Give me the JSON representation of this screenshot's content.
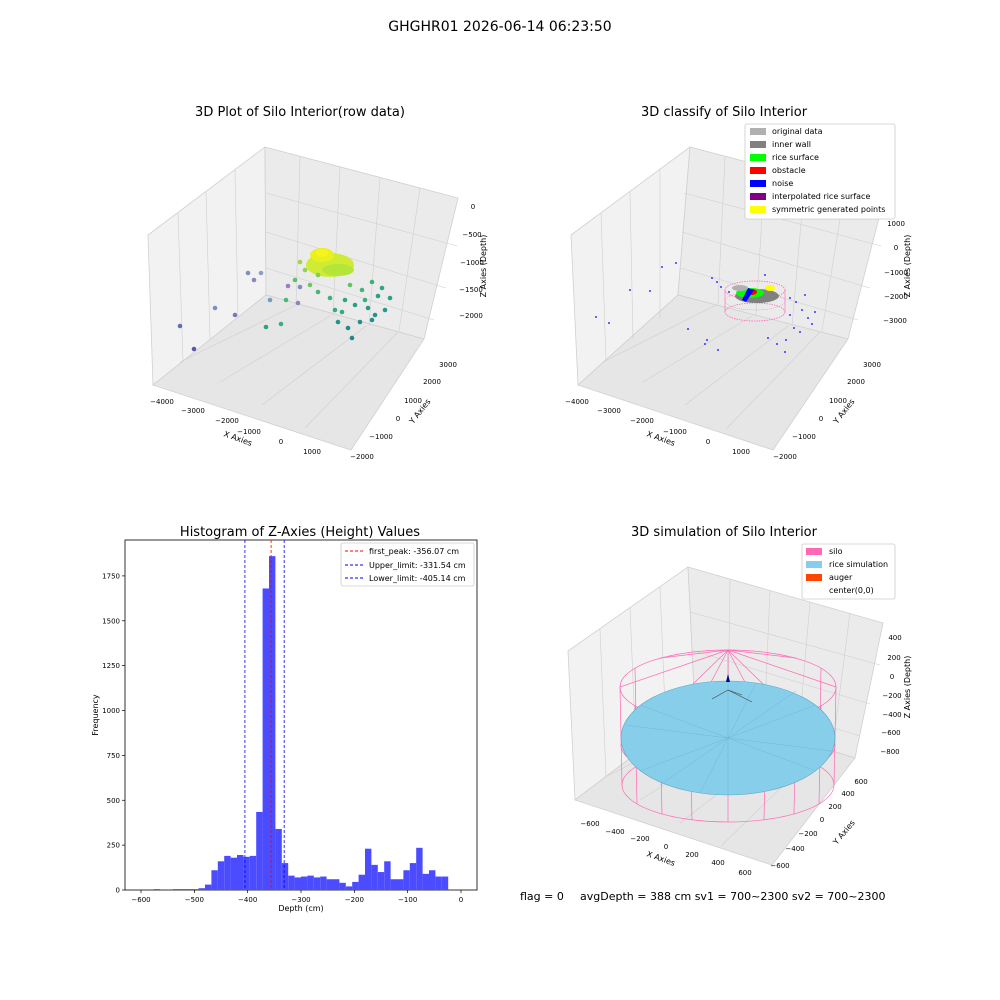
{
  "suptitle": "GHGHR01 2026-06-14 06:23:50",
  "colors": {
    "histogram_bar": "#4b4bff",
    "first_peak_line": "#ff0000",
    "limit_lines": "#0000ff",
    "silo_wire": "#ff69b4",
    "rice_sim": "#87ceeb",
    "auger": "#ff4500",
    "original_data": "#b0b0b0",
    "inner_wall": "#808080",
    "rice_surface": "#00ff00",
    "obstacle": "#ff0000",
    "noise": "#0000ff",
    "interpolated_rice_surface": "#800080",
    "symmetric_generated_points": "#ffff00"
  },
  "panel1": {
    "title": "3D Plot of Silo Interior(row data)",
    "xlabel": "X Axies",
    "ylabel": "Y Axies",
    "zlabel": "Z Axies (Depth)",
    "xticks": [
      "−4000",
      "−3000",
      "−2000",
      "−1000",
      "0",
      "1000"
    ],
    "yticks": [
      "−2000",
      "−1000",
      "0",
      "1000",
      "2000",
      "3000"
    ],
    "zticks": [
      "0",
      "−500",
      "−1000",
      "−1500",
      "−2000"
    ]
  },
  "panel2": {
    "title": "3D classify of Silo Interior",
    "xlabel": "X Axies",
    "ylabel": "Y Axies",
    "zlabel": "Z Axies (Depth)",
    "xticks": [
      "−4000",
      "−3000",
      "−2000",
      "−1000",
      "0",
      "1000"
    ],
    "yticks": [
      "−2000",
      "−1000",
      "0",
      "1000",
      "2000",
      "3000"
    ],
    "zticks": [
      "1000",
      "0",
      "−1000",
      "−2000",
      "−3000"
    ],
    "legend": [
      {
        "label": "original data",
        "color": "#b0b0b0"
      },
      {
        "label": "inner wall",
        "color": "#808080"
      },
      {
        "label": "rice surface",
        "color": "#00ff00"
      },
      {
        "label": "obstacle",
        "color": "#ff0000"
      },
      {
        "label": "noise",
        "color": "#0000ff"
      },
      {
        "label": "interpolated rice surface",
        "color": "#800080"
      },
      {
        "label": "symmetric generated points",
        "color": "#ffff00"
      }
    ]
  },
  "chart_data": {
    "type": "bar",
    "title": "Histogram of Z-Axies (Height) Values",
    "xlabel": "Depth (cm)",
    "ylabel": "Frequency",
    "xlim": [
      -630,
      30
    ],
    "ylim": [
      0,
      1950
    ],
    "xticks": [
      -600,
      -500,
      -400,
      -300,
      -200,
      -100,
      0
    ],
    "yticks": [
      0,
      250,
      500,
      750,
      1000,
      1250,
      1500,
      1750
    ],
    "bin_width": 12,
    "bin_starts": [
      -600,
      -588,
      -576,
      -564,
      -552,
      -540,
      -528,
      -516,
      -504,
      -492,
      -480,
      -468,
      -456,
      -444,
      -432,
      -420,
      -408,
      -396,
      -384,
      -372,
      -360,
      -348,
      -336,
      -324,
      -312,
      -300,
      -288,
      -276,
      -264,
      -252,
      -240,
      -228,
      -216,
      -204,
      -192,
      -180,
      -168,
      -156,
      -144,
      -132,
      -120,
      -108,
      -96,
      -84,
      -72,
      -60,
      -48,
      -36,
      -24,
      -12
    ],
    "values": [
      0,
      0,
      5,
      0,
      0,
      5,
      5,
      5,
      5,
      10,
      30,
      110,
      160,
      190,
      180,
      195,
      185,
      190,
      435,
      1680,
      1860,
      340,
      150,
      80,
      70,
      75,
      80,
      70,
      75,
      60,
      60,
      40,
      20,
      45,
      85,
      230,
      140,
      100,
      160,
      60,
      60,
      110,
      150,
      235,
      90,
      110,
      75,
      75,
      0,
      0
    ],
    "lines": [
      {
        "label": "first_peak: -356.07 cm",
        "x": -356.07,
        "color": "#ff0000"
      },
      {
        "label": "Upper_limit: -331.54 cm",
        "x": -331.54,
        "color": "#0000ff"
      },
      {
        "label": "Lower_limit: -405.14 cm",
        "x": -405.14,
        "color": "#0000ff"
      }
    ],
    "legend_position": "top-right"
  },
  "panel4": {
    "title": "3D simulation of Silo Interior",
    "xlabel": "X Axies",
    "ylabel": "Y Axies",
    "zlabel": "Z Axies (Depth)",
    "xticks": [
      "−600",
      "−400",
      "−200",
      "0",
      "200",
      "400",
      "600"
    ],
    "yticks": [
      "−600",
      "−400",
      "−200",
      "0",
      "200",
      "400",
      "600"
    ],
    "zticks": [
      "400",
      "200",
      "0",
      "−200",
      "−400",
      "−600",
      "−800"
    ],
    "legend": [
      {
        "label": "silo",
        "color": "#ff69b4"
      },
      {
        "label": "rice simulation",
        "color": "#87ceeb"
      },
      {
        "label": "auger",
        "color": "#ff4500"
      },
      {
        "label": "center(0,0)",
        "color": ""
      }
    ]
  },
  "footer": {
    "flag": "flag = 0",
    "stats": "avgDepth = 388 cm  sv1 = 700~2300  sv2 = 700~2300"
  }
}
